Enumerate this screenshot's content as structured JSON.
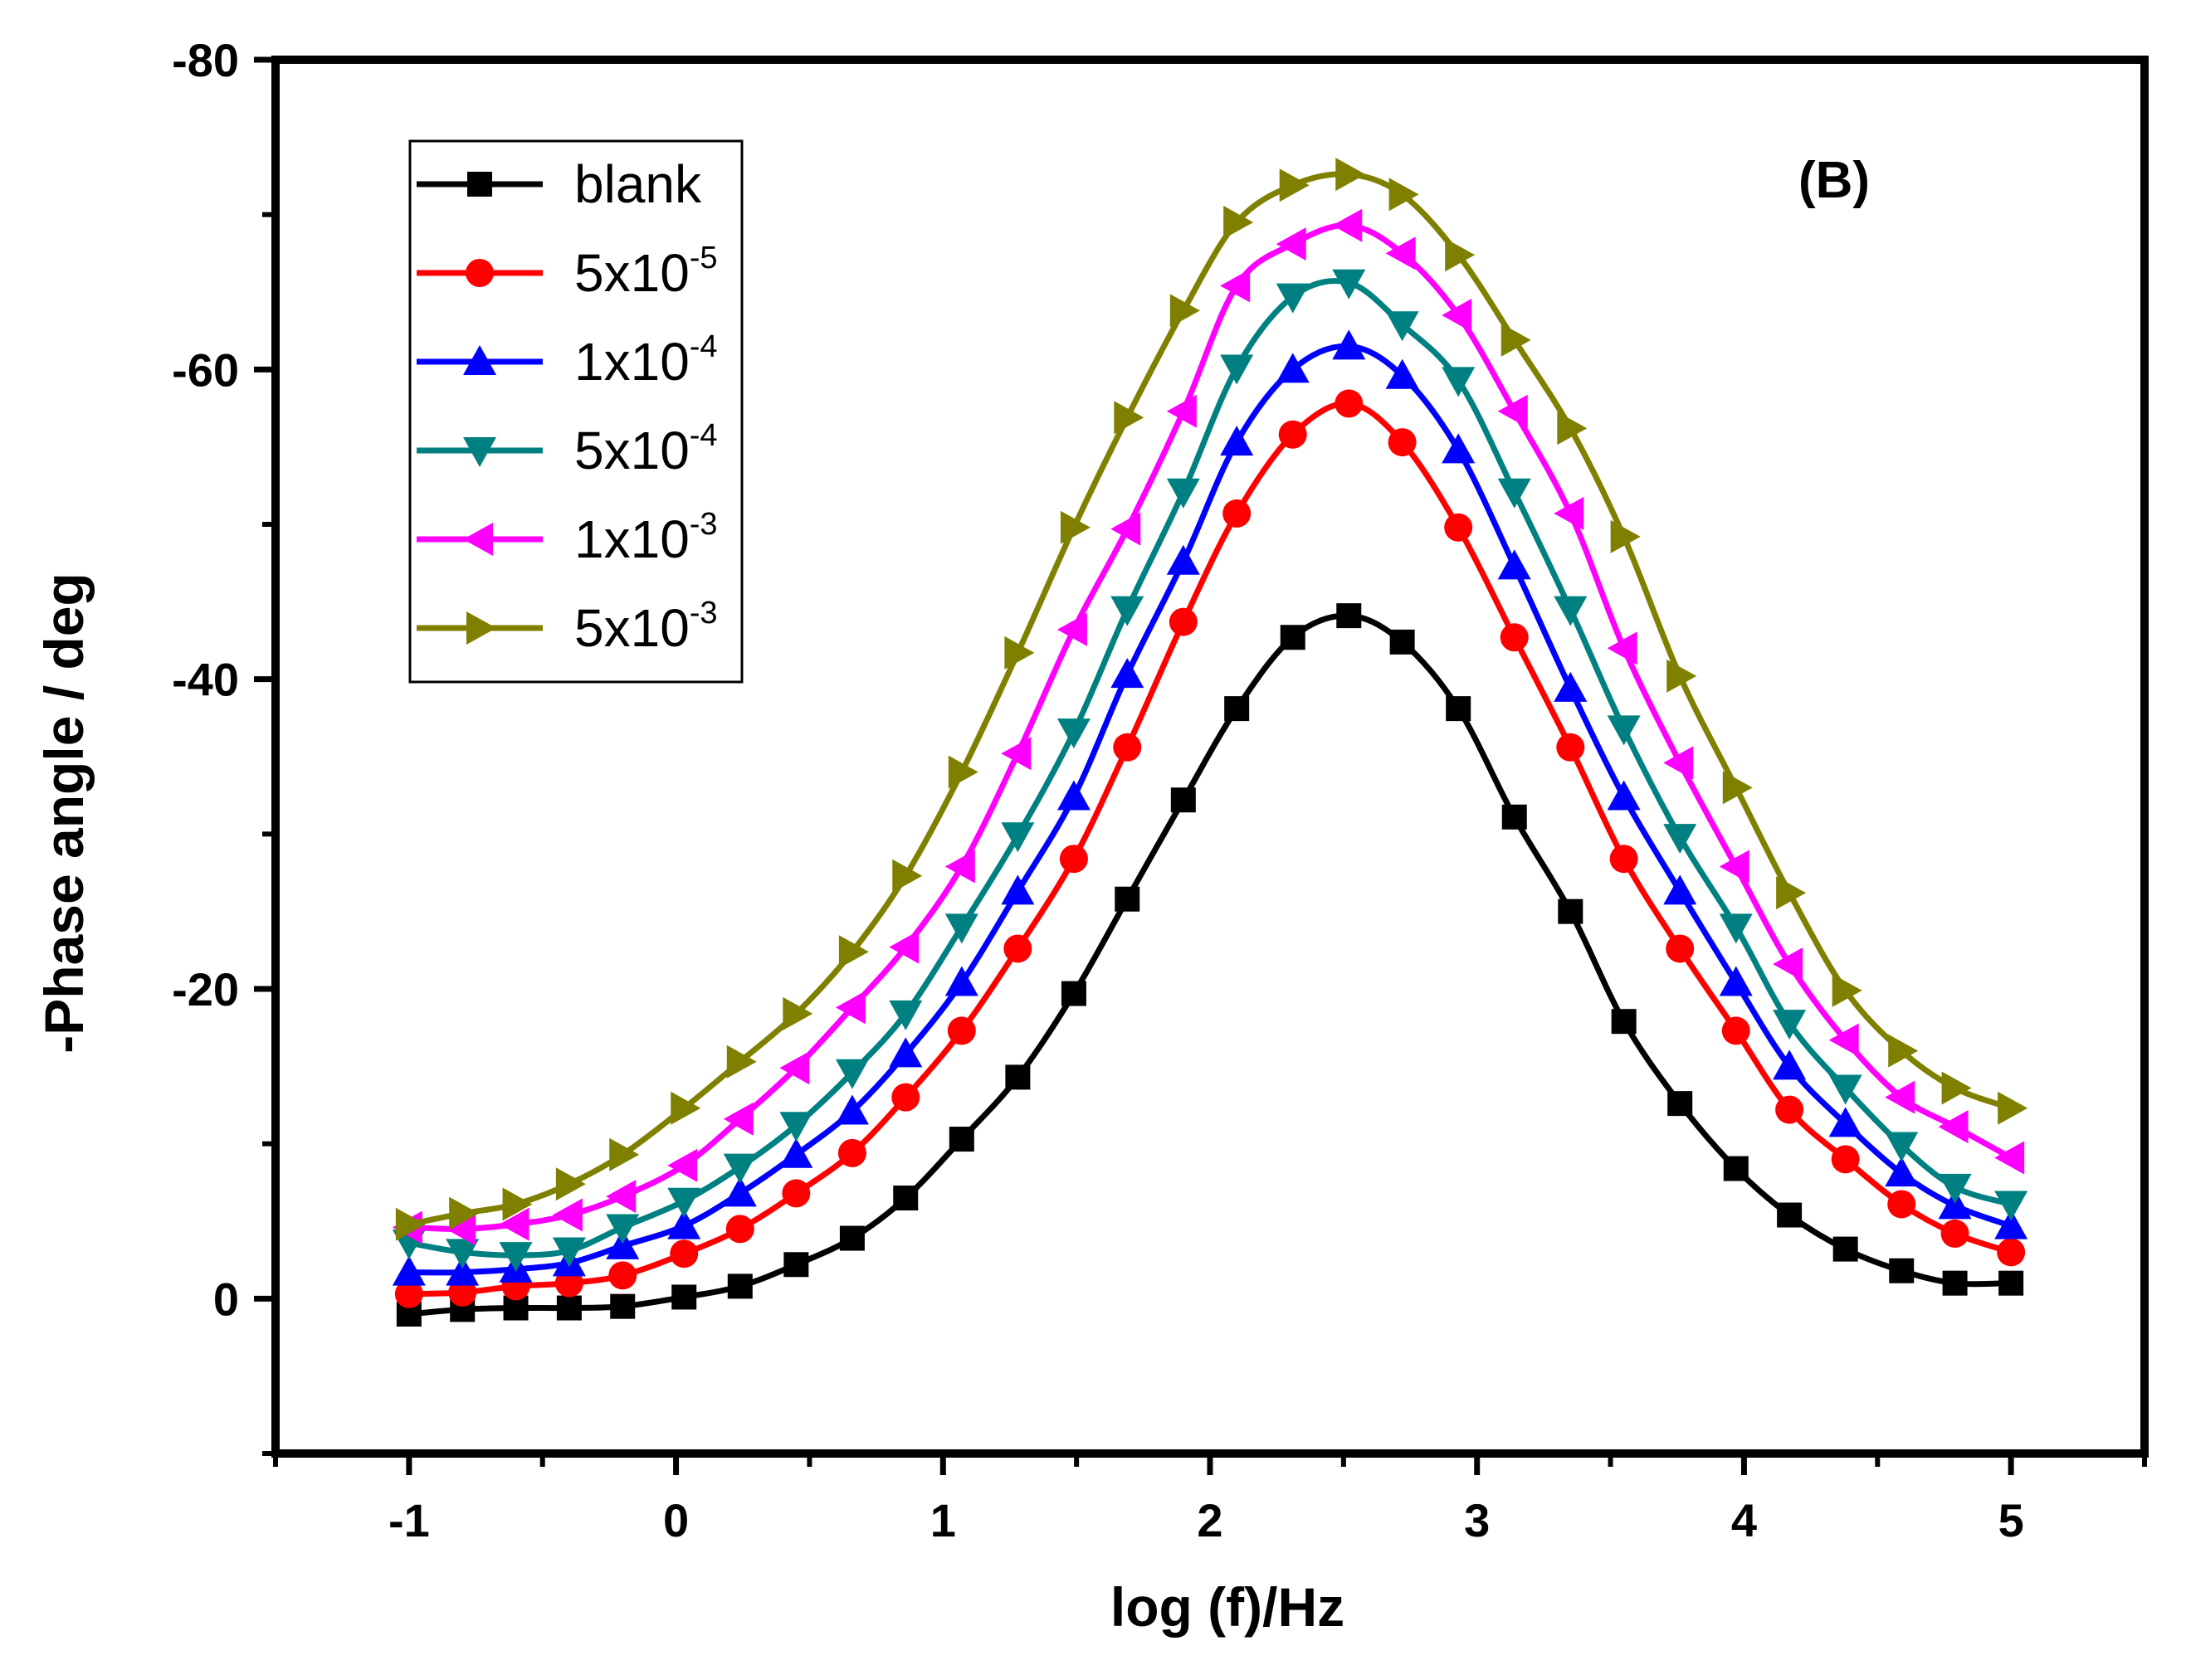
{
  "chart_data": {
    "type": "line",
    "title": "",
    "panel_label": "(B)",
    "xlabel": "log (f)/Hz",
    "ylabel": "-Phase angle / deg",
    "xlim": [
      -1.5,
      5.5
    ],
    "ylim": [
      10,
      -80
    ],
    "x_ticks": [
      -1,
      0,
      1,
      2,
      3,
      4,
      5
    ],
    "x_tick_labels": [
      "-1",
      "0",
      "1",
      "2",
      "3",
      "4",
      "5"
    ],
    "y_ticks": [
      0,
      -20,
      -40,
      -60,
      -80
    ],
    "y_tick_labels": [
      "0",
      "-20",
      "-40",
      "-60",
      "-80"
    ],
    "grid": false,
    "legend_position": "top-left",
    "x": [
      -1.0,
      -0.8,
      -0.6,
      -0.4,
      -0.2,
      0.03,
      0.24,
      0.45,
      0.66,
      0.86,
      1.07,
      1.28,
      1.49,
      1.69,
      1.9,
      2.1,
      2.31,
      2.52,
      2.72,
      2.93,
      3.14,
      3.35,
      3.55,
      3.76,
      3.97,
      4.17,
      4.38,
      4.59,
      4.79,
      5.0
    ],
    "series": [
      {
        "name": "blank",
        "base": "blank",
        "exp": "",
        "color": "#000000",
        "marker": "square",
        "values": [
          1.0,
          0.7,
          0.6,
          0.6,
          0.5,
          -0.1,
          -0.8,
          -2.2,
          -3.9,
          -6.5,
          -10.3,
          -14.3,
          -19.7,
          -25.8,
          -32.2,
          -38.1,
          -42.7,
          -44.1,
          -42.4,
          -38.1,
          -31.1,
          -25.0,
          -17.9,
          -12.6,
          -8.4,
          -5.4,
          -3.2,
          -1.8,
          -1.0,
          -1.0
        ]
      },
      {
        "name": "5x10-5",
        "base": "5x10",
        "exp": "-5",
        "color": "#ff0000",
        "marker": "circle",
        "values": [
          -0.3,
          -0.4,
          -0.8,
          -1.0,
          -1.5,
          -2.9,
          -4.5,
          -6.8,
          -9.4,
          -13.0,
          -17.3,
          -22.6,
          -28.4,
          -35.6,
          -43.7,
          -50.7,
          -55.8,
          -57.8,
          -55.3,
          -49.8,
          -42.7,
          -35.6,
          -28.4,
          -22.6,
          -17.3,
          -12.2,
          -9.0,
          -6.1,
          -4.2,
          -3.0
        ]
      },
      {
        "name": "1x10-4",
        "base": "1x10",
        "exp": "-4",
        "color": "#0000ff",
        "marker": "triangle-up",
        "values": [
          -1.7,
          -1.7,
          -1.9,
          -2.3,
          -3.4,
          -4.7,
          -6.8,
          -9.3,
          -12.1,
          -15.8,
          -20.4,
          -26.3,
          -32.4,
          -40.3,
          -47.6,
          -55.3,
          -60.0,
          -61.5,
          -59.6,
          -54.8,
          -47.3,
          -39.4,
          -32.4,
          -26.3,
          -20.4,
          -15.0,
          -11.3,
          -8.1,
          -6.0,
          -4.7
        ]
      },
      {
        "name": "5x10-4",
        "base": "5x10",
        "exp": "-4",
        "color": "#008080",
        "marker": "triangle-down",
        "values": [
          -3.6,
          -3.0,
          -2.8,
          -3.1,
          -4.6,
          -6.3,
          -8.5,
          -11.2,
          -14.6,
          -18.4,
          -24.0,
          -29.9,
          -36.6,
          -44.5,
          -52.1,
          -60.1,
          -64.7,
          -65.6,
          -62.9,
          -59.3,
          -52.1,
          -44.5,
          -36.8,
          -29.8,
          -24.0,
          -17.8,
          -13.6,
          -9.9,
          -7.2,
          -6.1
        ]
      },
      {
        "name": "1x10-3",
        "base": "1x10",
        "exp": "-3",
        "color": "#ff00ff",
        "marker": "triangle-left",
        "values": [
          -4.6,
          -4.5,
          -4.8,
          -5.4,
          -6.6,
          -8.6,
          -11.6,
          -14.9,
          -18.8,
          -22.7,
          -27.9,
          -35.2,
          -43.2,
          -49.7,
          -57.3,
          -65.4,
          -68.1,
          -69.3,
          -67.5,
          -63.5,
          -57.3,
          -50.7,
          -42.0,
          -34.6,
          -27.9,
          -21.6,
          -16.7,
          -13.0,
          -11.1,
          -9.1
        ]
      },
      {
        "name": "5x10-3",
        "base": "5x10",
        "exp": "-3",
        "color": "#808000",
        "marker": "triangle-right",
        "values": [
          -4.8,
          -5.5,
          -6.1,
          -7.4,
          -9.3,
          -12.3,
          -15.3,
          -18.4,
          -22.4,
          -27.3,
          -34.0,
          -41.7,
          -49.8,
          -56.9,
          -63.8,
          -69.5,
          -71.9,
          -72.6,
          -71.3,
          -67.4,
          -61.9,
          -56.2,
          -49.2,
          -40.2,
          -33.0,
          -26.2,
          -19.9,
          -16.0,
          -13.6,
          -12.3
        ]
      }
    ]
  }
}
